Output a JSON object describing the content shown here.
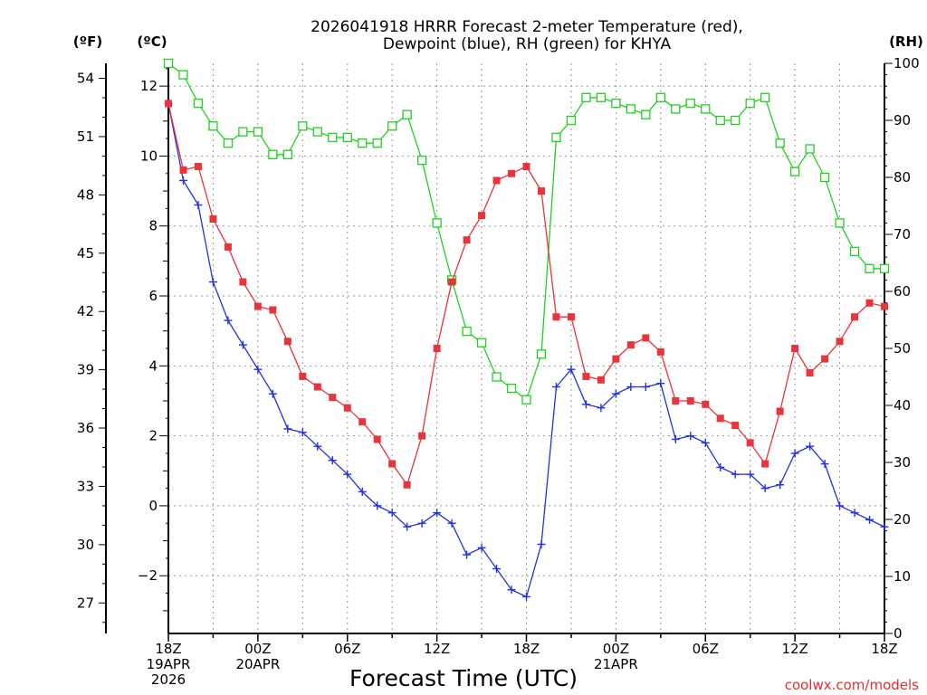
{
  "chart_data": {
    "type": "line",
    "title_line1": "2026041918 HRRR Forecast 2-meter Temperature (red),",
    "title_line2": "Dewpoint (blue), RH (green) for KHYA",
    "xlabel": "Forecast Time (UTC)",
    "credit": "coolwx.com/models",
    "units": {
      "left_f": "(ºF)",
      "left_c": "(ºC)",
      "right": "(RH)"
    },
    "x_range": [
      0,
      48
    ],
    "x_ticks": [
      {
        "hour": 0,
        "lines": [
          "18Z",
          "19APR",
          "2026"
        ]
      },
      {
        "hour": 6,
        "lines": [
          "00Z",
          "20APR"
        ]
      },
      {
        "hour": 12,
        "lines": [
          "06Z"
        ]
      },
      {
        "hour": 18,
        "lines": [
          "12Z"
        ]
      },
      {
        "hour": 24,
        "lines": [
          "18Z"
        ]
      },
      {
        "hour": 30,
        "lines": [
          "00Z",
          "21APR"
        ]
      },
      {
        "hour": 36,
        "lines": [
          "06Z"
        ]
      },
      {
        "hour": 42,
        "lines": [
          "12Z"
        ]
      },
      {
        "hour": 48,
        "lines": [
          "18Z"
        ]
      }
    ],
    "celsius_range": [
      -3.65,
      12.65
    ],
    "celsius_ticks": [
      "−2",
      "0",
      "2",
      "4",
      "6",
      "8",
      "10",
      "12"
    ],
    "fahrenheit_ticks": [
      "27",
      "30",
      "33",
      "36",
      "39",
      "42",
      "45",
      "48",
      "51",
      "54"
    ],
    "rh_range": [
      0,
      100
    ],
    "rh_ticks": [
      "0",
      "10",
      "20",
      "30",
      "40",
      "50",
      "60",
      "70",
      "80",
      "90",
      "100"
    ],
    "colors": {
      "temperature": "#e8343a",
      "dewpoint": "#2233dd",
      "rh": "#22d022",
      "grid": "#999999"
    },
    "series": [
      {
        "name": "Temperature",
        "unit": "C",
        "values": [
          11.5,
          9.6,
          9.7,
          8.2,
          7.4,
          6.4,
          5.7,
          5.6,
          4.7,
          3.7,
          3.4,
          3.1,
          2.8,
          2.4,
          1.9,
          1.2,
          0.6,
          2.0,
          4.5,
          6.4,
          7.6,
          8.3,
          9.3,
          9.5,
          9.7,
          9.0,
          5.4,
          5.4,
          3.7,
          3.6,
          4.2,
          4.6,
          4.8,
          4.4,
          3.0,
          3.0,
          2.9,
          2.5,
          2.3,
          1.8,
          1.2,
          2.7,
          4.5,
          3.8,
          4.2,
          4.7,
          5.4,
          5.8,
          5.7
        ]
      },
      {
        "name": "Dewpoint",
        "unit": "C",
        "values": [
          11.5,
          9.3,
          8.6,
          6.4,
          5.3,
          4.6,
          3.9,
          3.2,
          2.2,
          2.1,
          1.7,
          1.3,
          0.9,
          0.4,
          0.0,
          -0.2,
          -0.6,
          -0.5,
          -0.2,
          -0.5,
          -1.4,
          -1.2,
          -1.8,
          -2.4,
          -2.6,
          -1.1,
          3.4,
          3.9,
          2.9,
          2.8,
          3.2,
          3.4,
          3.4,
          3.5,
          1.9,
          2.0,
          1.8,
          1.1,
          0.9,
          0.9,
          0.5,
          0.6,
          1.5,
          1.7,
          1.2,
          0.0,
          -0.2,
          -0.4,
          -0.6
        ]
      },
      {
        "name": "RH",
        "unit": "%",
        "values": [
          100,
          98,
          93,
          89,
          86,
          88,
          88,
          84,
          84,
          89,
          88,
          87,
          87,
          86,
          86,
          89,
          91,
          83,
          72,
          62,
          53,
          51,
          45,
          43,
          41,
          49,
          87,
          90,
          94,
          94,
          93,
          92,
          91,
          94,
          92,
          93,
          92,
          90,
          90,
          93,
          94,
          86,
          81,
          85,
          80,
          72,
          67,
          64,
          64
        ]
      }
    ]
  }
}
